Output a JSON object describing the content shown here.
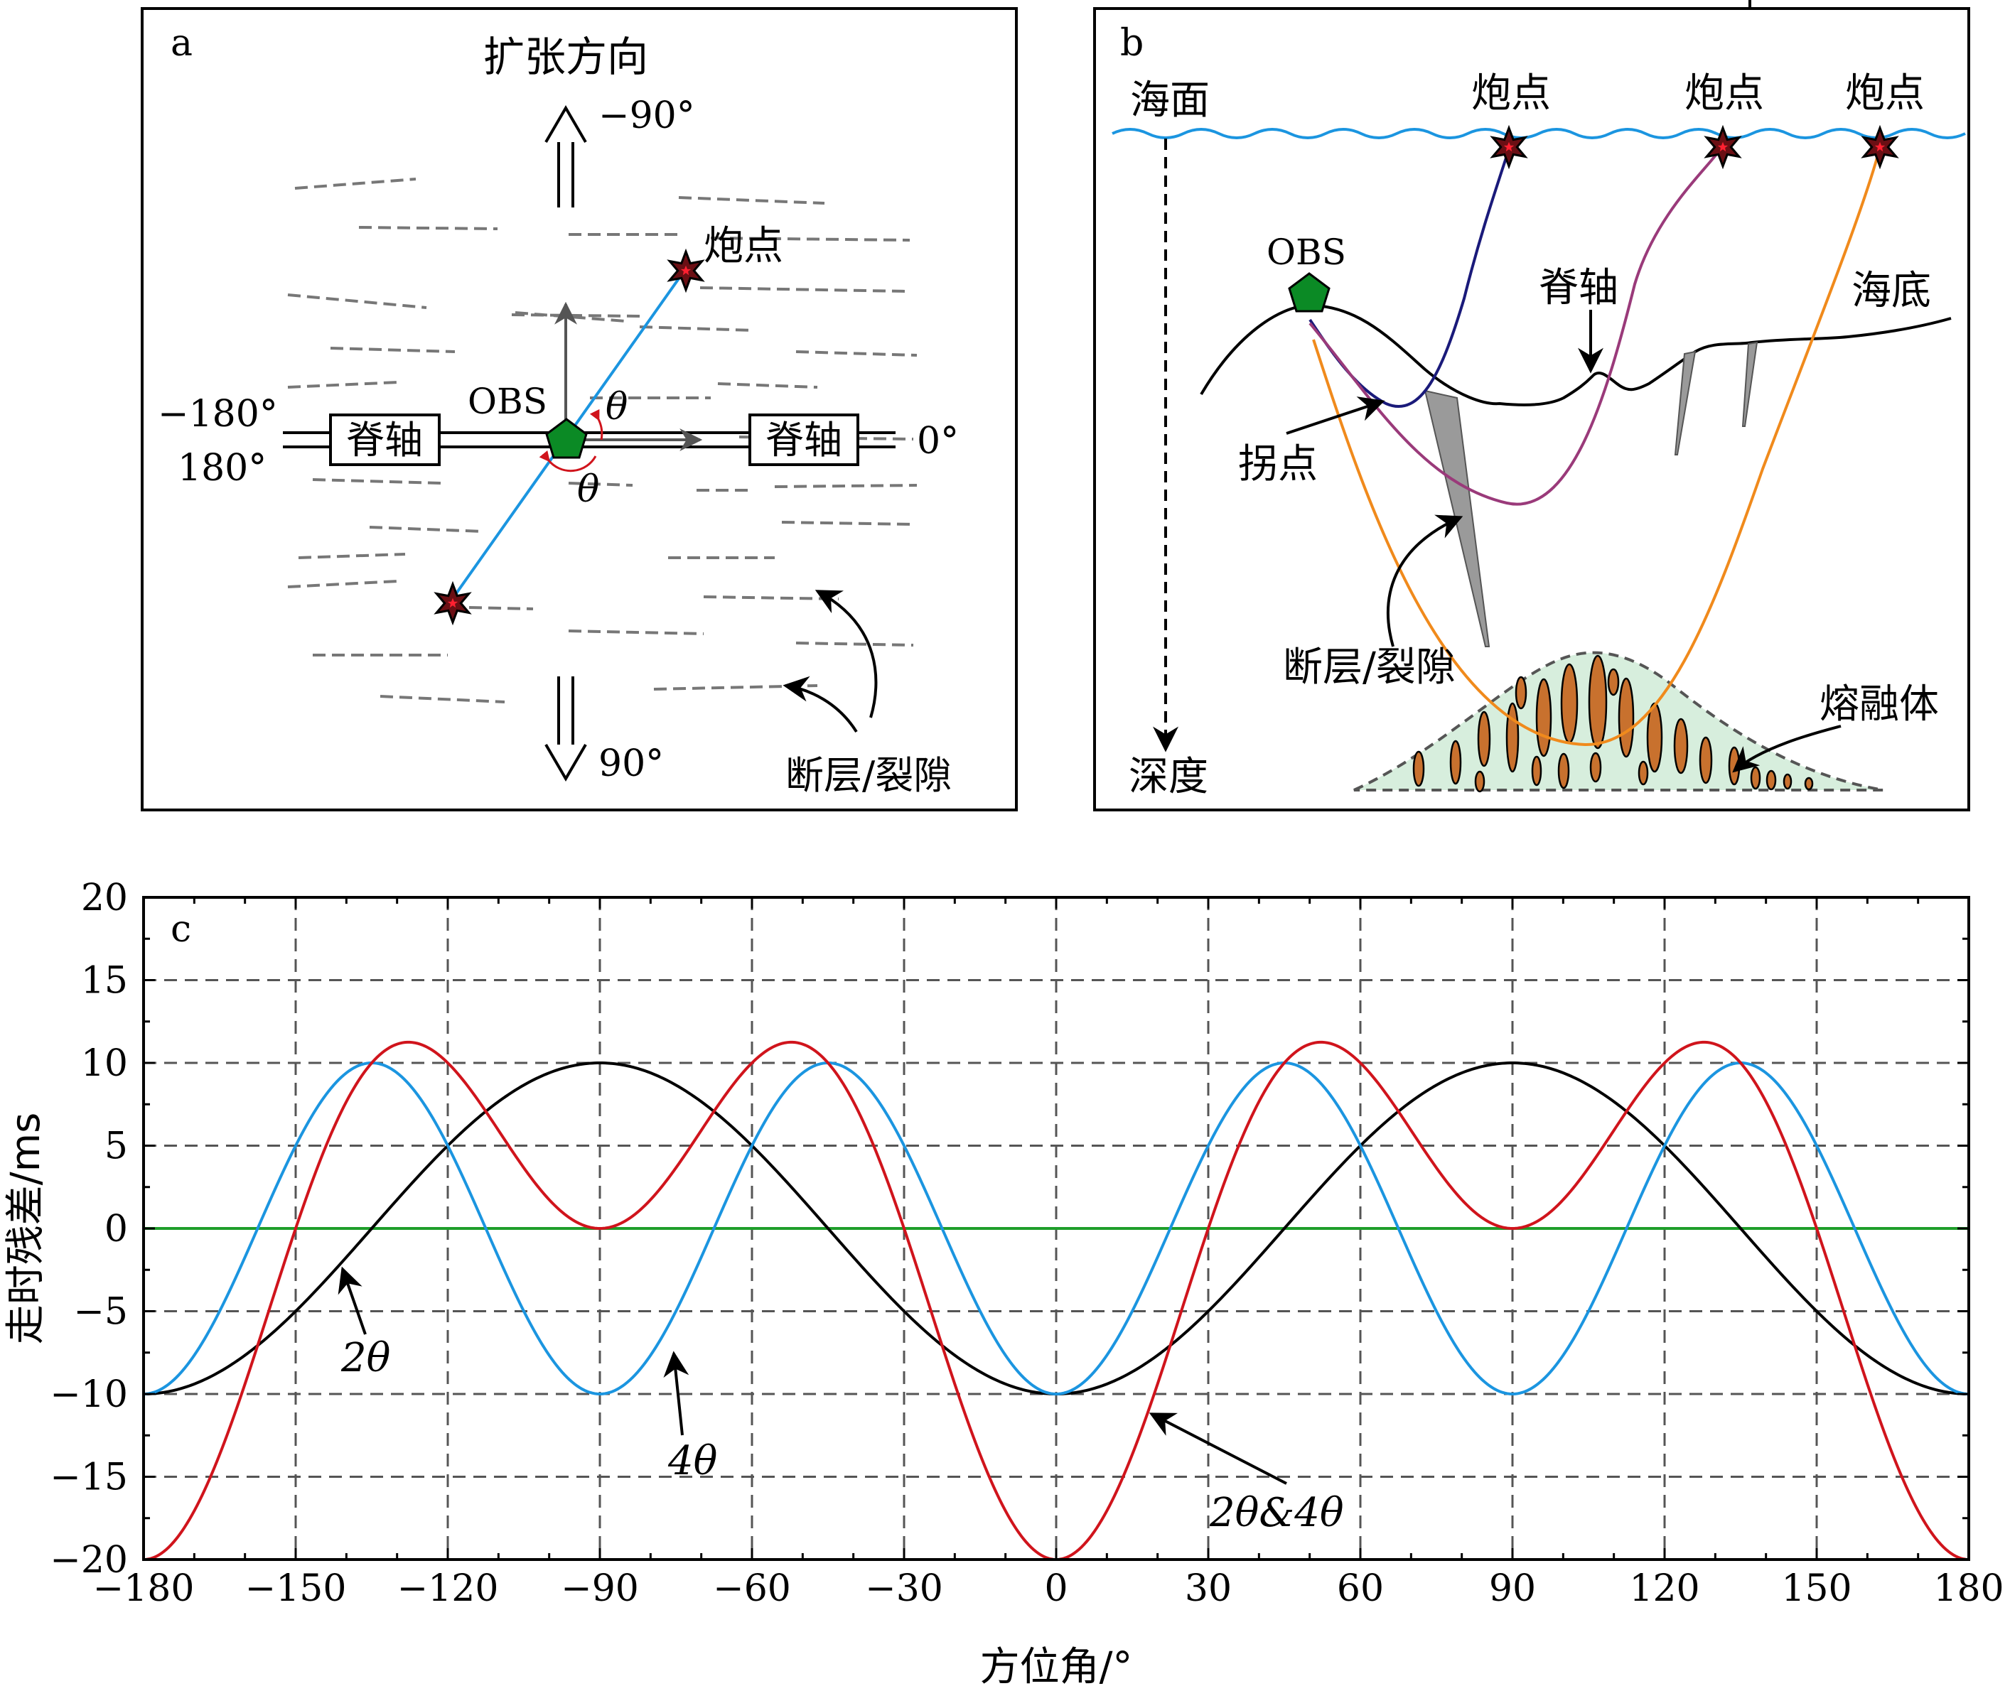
{
  "panel_a": {
    "label": "a",
    "spreading_direction": "扩张方向",
    "deg_top": "−90°",
    "deg_bottom": "90°",
    "deg_left_top": "−180°",
    "deg_left_bottom": "180°",
    "deg_right": "0°",
    "ridge_axis": "脊轴",
    "obs": "OBS",
    "shot_point": "炮点",
    "theta": "θ",
    "faults": "断层/裂隙"
  },
  "panel_b": {
    "label": "b",
    "sea_surface": "海面",
    "shot_point": "炮点",
    "obs": "OBS",
    "ridge_axis": "脊轴",
    "seafloor": "海底",
    "turning_point": "拐点",
    "faults": "断层/裂隙",
    "melt": "熔融体",
    "depth": "深度"
  },
  "chart_data": {
    "type": "line",
    "panel_label": "c",
    "xlabel": "方位角/°",
    "ylabel": "走时残差/ms",
    "xlim": [
      -180,
      180
    ],
    "ylim": [
      -20,
      20
    ],
    "xticks": [
      -180,
      -150,
      -120,
      -90,
      -60,
      -30,
      0,
      30,
      60,
      90,
      120,
      150,
      180
    ],
    "yticks": [
      -20,
      -15,
      -10,
      -5,
      0,
      5,
      10,
      15,
      20
    ],
    "xtick_labels": [
      "−180",
      "−150",
      "−120",
      "−90",
      "−60",
      "−30",
      "0",
      "30",
      "60",
      "90",
      "120",
      "150",
      "180"
    ],
    "ytick_labels": [
      "−20",
      "−15",
      "−10",
      "−5",
      "0",
      "5",
      "10",
      "15",
      "20"
    ],
    "grid": true,
    "series": [
      {
        "name": "2θ",
        "color": "#000000",
        "formula": "-10*cos(2x)",
        "x": [
          -180,
          -150,
          -120,
          -90,
          -60,
          -30,
          0,
          30,
          60,
          90,
          120,
          150,
          180
        ],
        "y": [
          -10,
          -5,
          5,
          10,
          5,
          -5,
          -10,
          -5,
          5,
          10,
          5,
          -5,
          -10
        ]
      },
      {
        "name": "4θ",
        "color": "#1b95e0",
        "formula": "-10*cos(4x)",
        "x": [
          -180,
          -157.5,
          -135,
          -112.5,
          -90,
          -67.5,
          -45,
          -22.5,
          0,
          22.5,
          45,
          67.5,
          90,
          112.5,
          135,
          157.5,
          180
        ],
        "y": [
          -10,
          0,
          10,
          0,
          -10,
          0,
          10,
          0,
          -10,
          0,
          10,
          0,
          -10,
          0,
          10,
          0,
          -10
        ]
      },
      {
        "name": "2θ&4θ",
        "color": "#d0141c",
        "formula": "-10*cos(2x)-10*cos(4x)",
        "x": [
          -180,
          -128.2,
          -90,
          -51.8,
          0,
          51.8,
          90,
          128.2,
          180
        ],
        "y": [
          -20,
          11.25,
          0,
          11.25,
          -20,
          11.25,
          0,
          11.25,
          -20
        ]
      },
      {
        "name": "",
        "color": "#1e9e2a",
        "formula": "0",
        "x": [
          -180,
          180
        ],
        "y": [
          0,
          0
        ]
      }
    ],
    "annotations": [
      "2θ",
      "4θ",
      "2θ&4θ"
    ]
  }
}
